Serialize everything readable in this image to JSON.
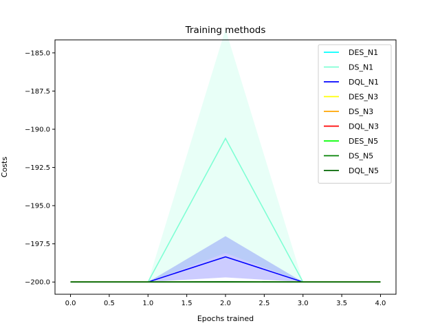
{
  "chart_data": {
    "type": "line",
    "title": "Training methods",
    "xlabel": "Epochs trained",
    "ylabel": "Costs",
    "xlim": [
      -0.2,
      4.2
    ],
    "ylim": [
      -200.8,
      -184.15
    ],
    "xticks": [
      0.0,
      0.5,
      1.0,
      1.5,
      2.0,
      2.5,
      3.0,
      3.5,
      4.0
    ],
    "xtick_labels": [
      "0.0",
      "0.5",
      "1.0",
      "1.5",
      "2.0",
      "2.5",
      "3.0",
      "3.5",
      "4.0"
    ],
    "yticks": [
      -185.0,
      -187.5,
      -190.0,
      -192.5,
      -195.0,
      -197.5,
      -200.0
    ],
    "ytick_labels": [
      "−185.0",
      "−187.5",
      "−190.0",
      "−192.5",
      "−195.0",
      "−197.5",
      "−200.0"
    ],
    "grid": false,
    "legend_position": "top-right",
    "x": [
      0,
      1,
      2,
      3,
      4
    ],
    "series": [
      {
        "name": "DES_N1",
        "color": "#00ffff",
        "values": [
          -200,
          -200,
          -200,
          -200,
          -200
        ],
        "band": [
          [
            -200,
            -200
          ],
          [
            -200,
            -200
          ],
          [
            -200,
            -200
          ],
          [
            -200,
            -200
          ],
          [
            -200,
            -200
          ]
        ],
        "band_color": "#00ffff",
        "band_opacity": 0.15
      },
      {
        "name": "DS_N1",
        "color": "#7fffd4",
        "values": [
          -200,
          -200,
          -190.6,
          -200,
          -200
        ],
        "band": [
          [
            -200,
            -200
          ],
          [
            -200,
            -200
          ],
          [
            -198.1,
            -183.45
          ],
          [
            -200,
            -200
          ],
          [
            -200,
            -200
          ]
        ],
        "band_color": "#7fffd4",
        "band_opacity": 0.18
      },
      {
        "name": "DQL_N1",
        "color": "#0000ff",
        "values": [
          -200,
          -200,
          -198.35,
          -200,
          -200
        ],
        "band": [
          [
            -200,
            -200
          ],
          [
            -200,
            -200
          ],
          [
            -199.7,
            -197.0
          ],
          [
            -200,
            -200
          ],
          [
            -200,
            -200
          ]
        ],
        "band_color": "#0000ff",
        "band_opacity": 0.2
      },
      {
        "name": "DES_N3",
        "color": "#ffff00",
        "values": [
          -200,
          -200,
          -200,
          -200,
          -200
        ],
        "band": [
          [
            -200,
            -200
          ],
          [
            -200,
            -200
          ],
          [
            -200,
            -200
          ],
          [
            -200,
            -200
          ],
          [
            -200,
            -200
          ]
        ],
        "band_color": "#ffff00",
        "band_opacity": 0.15
      },
      {
        "name": "DS_N3",
        "color": "#ffa500",
        "values": [
          -200,
          -200,
          -200,
          -200,
          -200
        ],
        "band": [
          [
            -200,
            -200
          ],
          [
            -200,
            -200
          ],
          [
            -200,
            -200
          ],
          [
            -200,
            -200
          ],
          [
            -200,
            -200
          ]
        ],
        "band_color": "#ffa500",
        "band_opacity": 0.15
      },
      {
        "name": "DQL_N3",
        "color": "#ff0000",
        "values": [
          -200,
          -200,
          -200,
          -200,
          -200
        ],
        "band": [
          [
            -200,
            -200
          ],
          [
            -200,
            -200
          ],
          [
            -200,
            -200
          ],
          [
            -200,
            -200
          ],
          [
            -200,
            -200
          ]
        ],
        "band_color": "#ff0000",
        "band_opacity": 0.15
      },
      {
        "name": "DES_N5",
        "color": "#00ff00",
        "values": [
          -200,
          -200,
          -200,
          -200,
          -200
        ],
        "band": [
          [
            -200,
            -200
          ],
          [
            -200,
            -200
          ],
          [
            -200,
            -200
          ],
          [
            -200,
            -200
          ],
          [
            -200,
            -200
          ]
        ],
        "band_color": "#00ff00",
        "band_opacity": 0.15
      },
      {
        "name": "DS_N5",
        "color": "#008000",
        "values": [
          -200,
          -200,
          -200,
          -200,
          -200
        ],
        "band": [
          [
            -200,
            -200
          ],
          [
            -200,
            -200
          ],
          [
            -200,
            -200
          ],
          [
            -200,
            -200
          ],
          [
            -200,
            -200
          ]
        ],
        "band_color": "#008000",
        "band_opacity": 0.15
      },
      {
        "name": "DQL_N5",
        "color": "#006400",
        "values": [
          -200,
          -200,
          -199.98,
          -200,
          -200
        ],
        "band": [
          [
            -200,
            -200
          ],
          [
            -200,
            -200
          ],
          [
            -200,
            -199.95
          ],
          [
            -200,
            -200
          ],
          [
            -200,
            -200
          ]
        ],
        "band_color": "#006400",
        "band_opacity": 0.15
      }
    ]
  }
}
